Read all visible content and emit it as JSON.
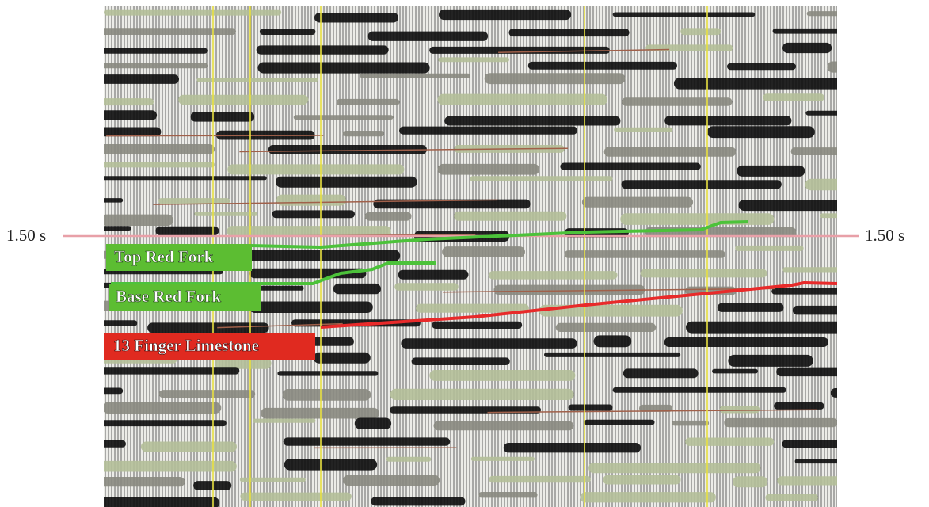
{
  "time_labels": {
    "left": "1.50 s",
    "right": "1.50 s"
  },
  "horizons": [
    {
      "label": "Top Red Fork"
    },
    {
      "label": "Base Red Fork"
    },
    {
      "label": "13 Finger Limestone"
    }
  ]
}
